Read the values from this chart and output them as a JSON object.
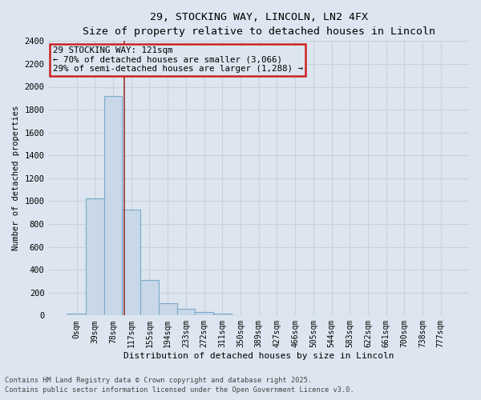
{
  "title_line1": "29, STOCKING WAY, LINCOLN, LN2 4FX",
  "title_line2": "Size of property relative to detached houses in Lincoln",
  "xlabel": "Distribution of detached houses by size in Lincoln",
  "ylabel": "Number of detached properties",
  "bin_labels": [
    "0sqm",
    "39sqm",
    "78sqm",
    "117sqm",
    "155sqm",
    "194sqm",
    "233sqm",
    "272sqm",
    "311sqm",
    "350sqm",
    "389sqm",
    "427sqm",
    "466sqm",
    "505sqm",
    "544sqm",
    "583sqm",
    "622sqm",
    "661sqm",
    "700sqm",
    "738sqm",
    "777sqm"
  ],
  "bar_values": [
    15,
    1025,
    1920,
    925,
    310,
    105,
    55,
    30,
    15,
    5,
    2,
    1,
    0,
    0,
    0,
    0,
    0,
    0,
    0,
    0,
    0
  ],
  "bar_color_fill": "#c8d8e8",
  "bar_color_edge": "#7aaac8",
  "annotation_text": "29 STOCKING WAY: 121sqm\n← 70% of detached houses are smaller (3,066)\n29% of semi-detached houses are larger (1,288) →",
  "annotation_box_color": "#cc2222",
  "property_line_color": "#993333",
  "ylim": [
    0,
    2400
  ],
  "yticks": [
    0,
    200,
    400,
    600,
    800,
    1000,
    1200,
    1400,
    1600,
    1800,
    2000,
    2200,
    2400
  ],
  "background_color": "#dde6f0",
  "grid_color": "#c8d0dc",
  "footer_line1": "Contains HM Land Registry data © Crown copyright and database right 2025.",
  "footer_line2": "Contains public sector information licensed under the Open Government Licence v3.0."
}
